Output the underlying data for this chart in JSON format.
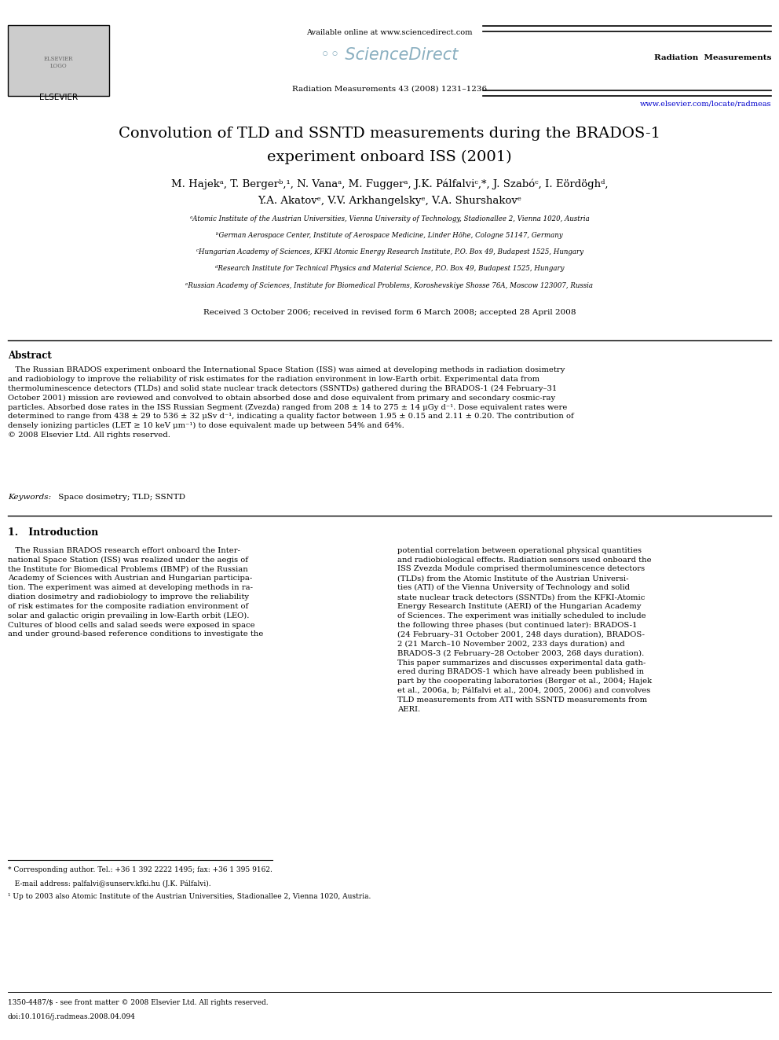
{
  "bg_color": "#ffffff",
  "title_line1": "Convolution of TLD and SSNTD measurements during the BRADOS-1",
  "title_line2": "experiment onboard ISS (2001)",
  "authors_line1": "M. Hajekᵃ, T. Bergerᵇ,¹, N. Vanaᵃ, M. Fuggerᵃ, J.K. Pálfalviᶜ,*, J. Szabóᶜ, I. Eördöghᵈ,",
  "authors_line2": "Y.A. Akatovᵉ, V.V. Arkhangelskyᵉ, V.A. Shurshakovᵉ",
  "affil_a": "ᵃAtomic Institute of the Austrian Universities, Vienna University of Technology, Stadionallee 2, Vienna 1020, Austria",
  "affil_b": "ᵇGerman Aerospace Center, Institute of Aerospace Medicine, Linder Höhe, Cologne 51147, Germany",
  "affil_c": "ᶜHungarian Academy of Sciences, KFKI Atomic Energy Research Institute, P.O. Box 49, Budapest 1525, Hungary",
  "affil_d": "ᵈResearch Institute for Technical Physics and Material Science, P.O. Box 49, Budapest 1525, Hungary",
  "affil_e": "ᵉRussian Academy of Sciences, Institute for Biomedical Problems, Koroshevskiye Shosse 76A, Moscow 123007, Russia",
  "received": "Received 3 October 2006; received in revised form 6 March 2008; accepted 28 April 2008",
  "abstract_title": "Abstract",
  "keywords_label": "Keywords:",
  "keywords_text": " Space dosimetry; TLD; SSNTD",
  "intro_title": "1.   Introduction",
  "footnote1": "* Corresponding author. Tel.: +36 1 392 2222 1495; fax: +36 1 395 9162.",
  "footnote2": "   E-mail address: palfalvi@sunserv.kfki.hu (J.K. Pálfalvi).",
  "footnote3": "¹ Up to 2003 also Atomic Institute of the Austrian Universities, Stadionallee 2, Vienna 1020, Austria.",
  "footer1": "1350-4487/$ - see front matter © 2008 Elsevier Ltd. All rights reserved.",
  "footer2": "doi:10.1016/j.radmeas.2008.04.094",
  "header_available": "Available online at www.sciencedirect.com",
  "header_journal": "Radiation  Measurements",
  "header_citation": "Radiation Measurements 43 (2008) 1231–1236",
  "header_url": "www.elsevier.com/locate/radmeas",
  "elsevier_text": "ELSEVIER"
}
